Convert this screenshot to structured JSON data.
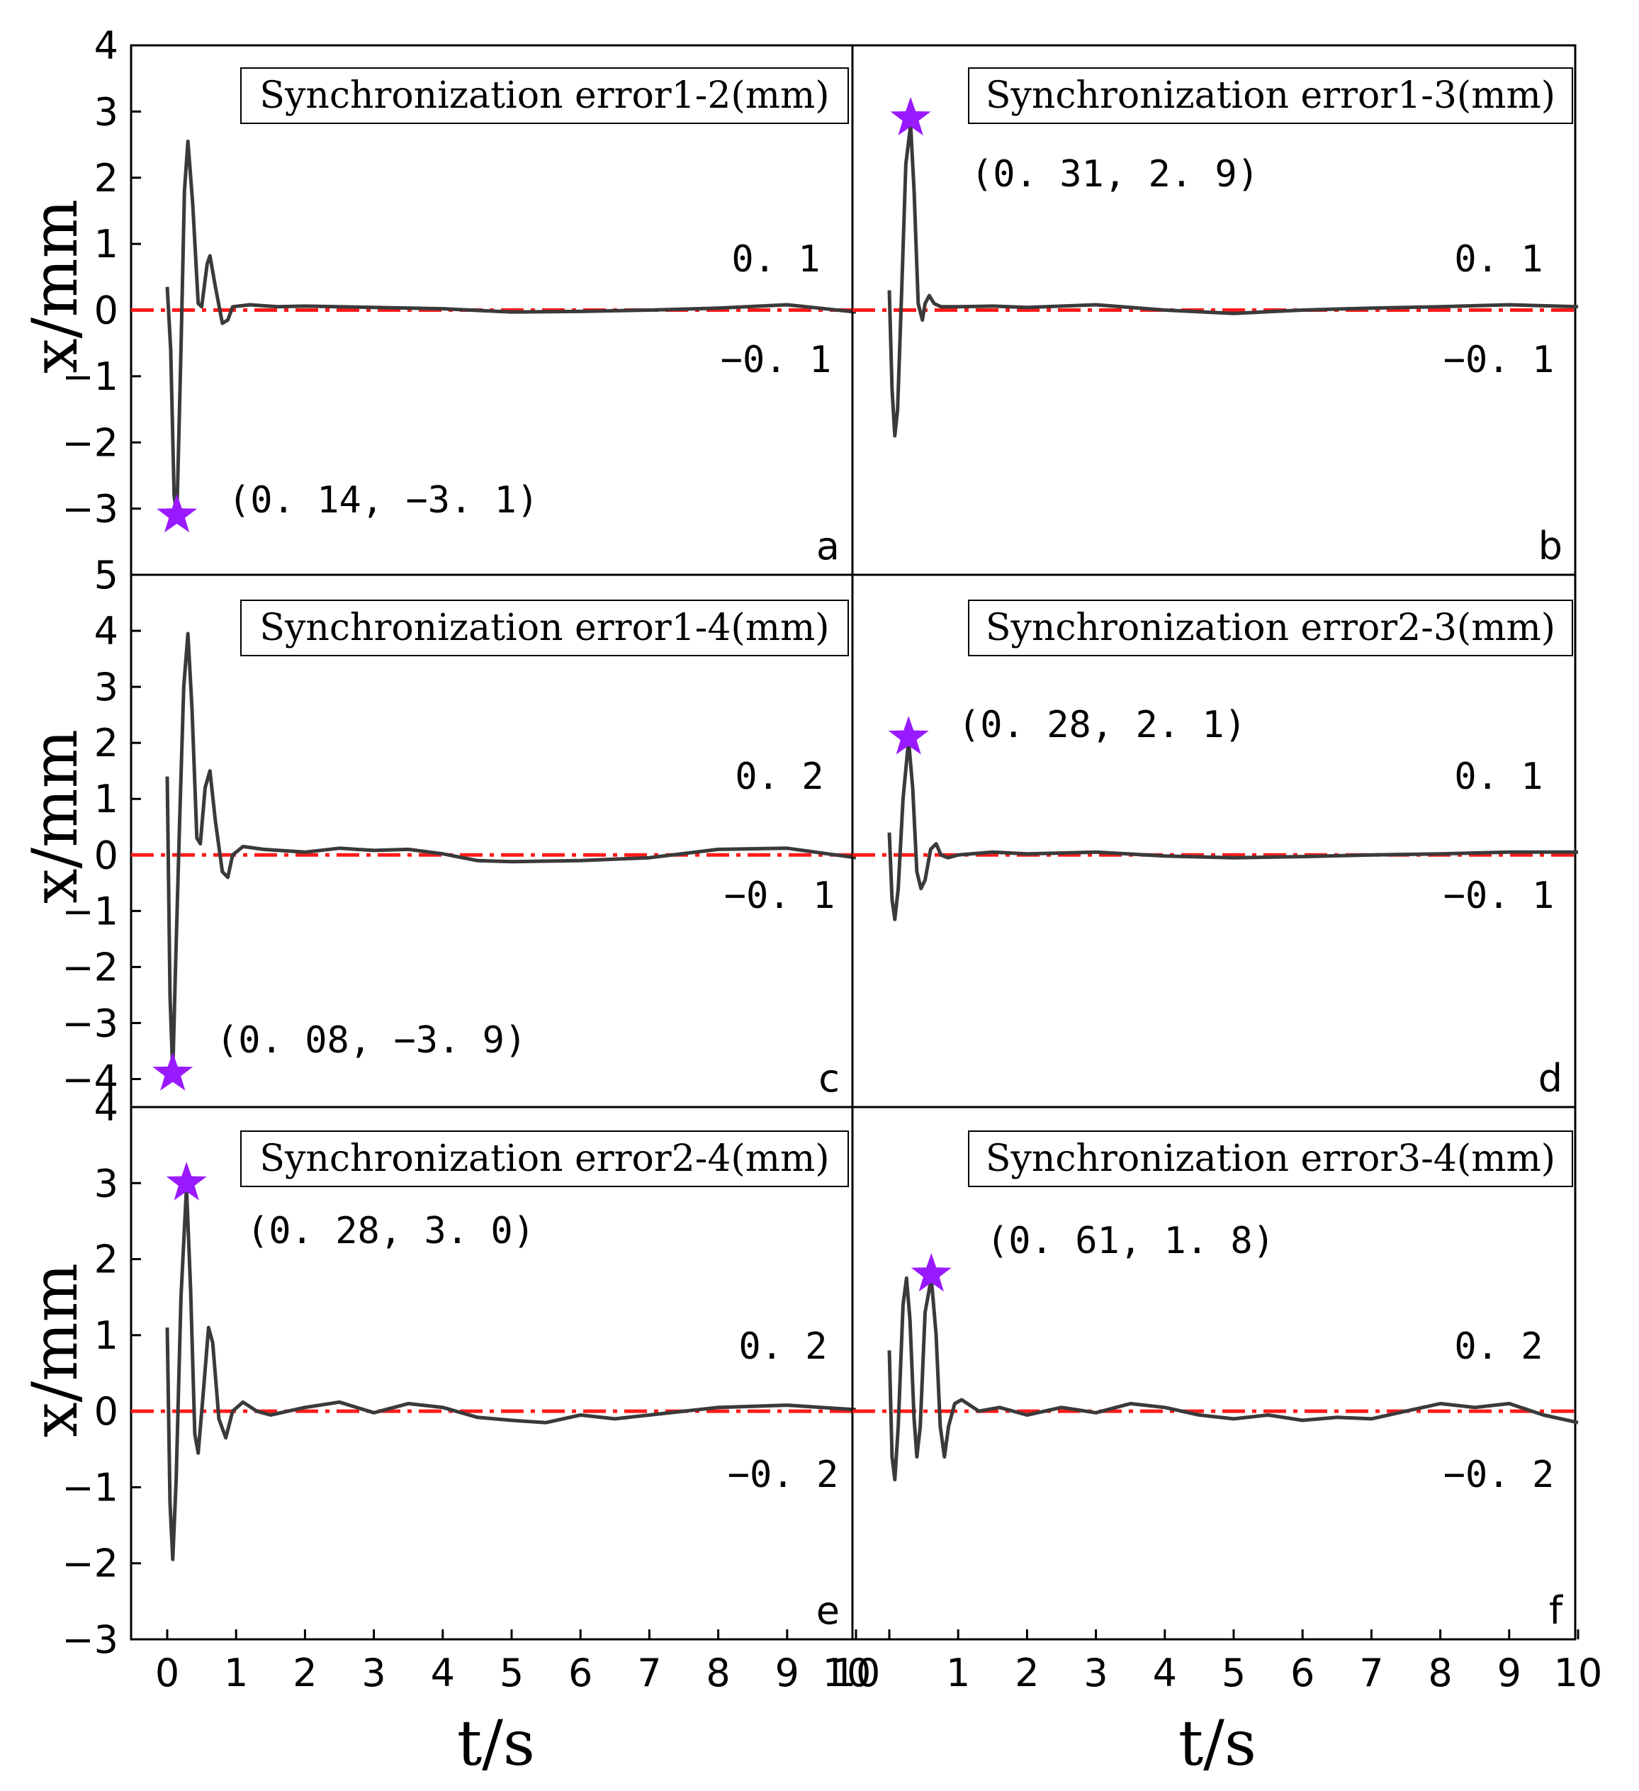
{
  "chart_data": {
    "type": "line",
    "xlabel": "t/s",
    "ylabel": "x/mm",
    "x_ticks": [
      "0",
      "1",
      "2",
      "3",
      "4",
      "5",
      "6",
      "7",
      "8",
      "9",
      "10"
    ],
    "x_ticks_right": [
      "10",
      "1",
      "2",
      "3",
      "4",
      "5",
      "6",
      "7",
      "8",
      "9",
      "10"
    ],
    "xlim": [
      -0.5,
      10
    ],
    "colors": {
      "line": "#3a3a3a",
      "ref": "#ff1a1a",
      "marker": "#9a1aff"
    },
    "panels": [
      {
        "letter": "a",
        "title": "Synchronization error1-2(mm)",
        "ylim": [
          -4,
          4
        ],
        "yticks": [
          "4",
          "3",
          "2",
          "1",
          "0",
          "−1",
          "−2",
          "−3"
        ],
        "ytick_values": [
          4,
          3,
          2,
          1,
          0,
          -1,
          -2,
          -3
        ],
        "upper_label": "0. 1",
        "lower_label": "−0. 1",
        "band": [
          0.1,
          -0.1
        ],
        "peak": {
          "t": 0.14,
          "v": -3.1,
          "label": "(0. 14, −3. 1)"
        },
        "series": [
          [
            0,
            0.35
          ],
          [
            0.05,
            -0.6
          ],
          [
            0.1,
            -2.8
          ],
          [
            0.14,
            -3.1
          ],
          [
            0.2,
            -0.6
          ],
          [
            0.25,
            1.8
          ],
          [
            0.3,
            2.55
          ],
          [
            0.37,
            1.6
          ],
          [
            0.45,
            0.1
          ],
          [
            0.5,
            0.05
          ],
          [
            0.58,
            0.7
          ],
          [
            0.62,
            0.82
          ],
          [
            0.7,
            0.35
          ],
          [
            0.8,
            -0.2
          ],
          [
            0.88,
            -0.15
          ],
          [
            0.95,
            0.05
          ],
          [
            1.2,
            0.08
          ],
          [
            1.6,
            0.05
          ],
          [
            2.0,
            0.06
          ],
          [
            3.0,
            0.04
          ],
          [
            4.0,
            0.02
          ],
          [
            5.0,
            -0.03
          ],
          [
            6.0,
            -0.02
          ],
          [
            7.0,
            0.0
          ],
          [
            8.0,
            0.03
          ],
          [
            9.0,
            0.08
          ],
          [
            10.0,
            -0.03
          ]
        ]
      },
      {
        "letter": "b",
        "title": "Synchronization error1-3(mm)",
        "ylim": [
          -4,
          4
        ],
        "yticks": [],
        "ytick_values": [],
        "upper_label": "0. 1",
        "lower_label": "−0. 1",
        "band": [
          0.1,
          -0.1
        ],
        "peak": {
          "t": 0.31,
          "v": 2.9,
          "label": "(0. 31, 2. 9)"
        },
        "series": [
          [
            0,
            0.3
          ],
          [
            0.04,
            -1.2
          ],
          [
            0.08,
            -1.9
          ],
          [
            0.12,
            -1.5
          ],
          [
            0.18,
            0.3
          ],
          [
            0.24,
            2.2
          ],
          [
            0.31,
            2.8
          ],
          [
            0.36,
            1.8
          ],
          [
            0.42,
            0.1
          ],
          [
            0.48,
            -0.15
          ],
          [
            0.52,
            0.1
          ],
          [
            0.58,
            0.22
          ],
          [
            0.65,
            0.1
          ],
          [
            0.75,
            0.05
          ],
          [
            1.0,
            0.05
          ],
          [
            1.5,
            0.06
          ],
          [
            2.0,
            0.04
          ],
          [
            3.0,
            0.08
          ],
          [
            4.0,
            0.0
          ],
          [
            5.0,
            -0.05
          ],
          [
            6.0,
            0.0
          ],
          [
            7.0,
            0.03
          ],
          [
            8.0,
            0.05
          ],
          [
            9.0,
            0.08
          ],
          [
            10.0,
            0.05
          ]
        ]
      },
      {
        "letter": "c",
        "title": "Synchronization error1-4(mm)",
        "ylim": [
          -4.5,
          5
        ],
        "yticks": [
          "5",
          "4",
          "3",
          "2",
          "1",
          "0",
          "−1",
          "−2",
          "−3",
          "−4"
        ],
        "ytick_values": [
          5,
          4,
          3,
          2,
          1,
          0,
          -1,
          -2,
          -3,
          -4
        ],
        "upper_label": "0. 2",
        "lower_label": "−0. 1",
        "band": [
          0.2,
          -0.1
        ],
        "peak": {
          "t": 0.08,
          "v": -3.9,
          "label": "(0. 08, −3. 9)"
        },
        "series": [
          [
            0,
            1.4
          ],
          [
            0.04,
            -2.5
          ],
          [
            0.08,
            -3.9
          ],
          [
            0.12,
            -2.0
          ],
          [
            0.18,
            0.6
          ],
          [
            0.24,
            3.0
          ],
          [
            0.3,
            3.95
          ],
          [
            0.36,
            2.6
          ],
          [
            0.43,
            0.3
          ],
          [
            0.48,
            0.2
          ],
          [
            0.55,
            1.2
          ],
          [
            0.62,
            1.5
          ],
          [
            0.7,
            0.6
          ],
          [
            0.8,
            -0.3
          ],
          [
            0.88,
            -0.4
          ],
          [
            0.95,
            0.0
          ],
          [
            1.1,
            0.15
          ],
          [
            1.4,
            0.1
          ],
          [
            2.0,
            0.05
          ],
          [
            2.5,
            0.12
          ],
          [
            3.0,
            0.08
          ],
          [
            3.5,
            0.1
          ],
          [
            4.0,
            0.02
          ],
          [
            4.5,
            -0.1
          ],
          [
            5.0,
            -0.12
          ],
          [
            6.0,
            -0.1
          ],
          [
            7.0,
            -0.05
          ],
          [
            8.0,
            0.1
          ],
          [
            9.0,
            0.12
          ],
          [
            10.0,
            -0.05
          ]
        ]
      },
      {
        "letter": "d",
        "title": "Synchronization error2-3(mm)",
        "ylim": [
          -4.5,
          5
        ],
        "yticks": [],
        "ytick_values": [],
        "upper_label": "0. 1",
        "lower_label": "−0. 1",
        "band": [
          0.1,
          -0.1
        ],
        "peak": {
          "t": 0.28,
          "v": 2.1,
          "label": "(0. 28, 2. 1)"
        },
        "series": [
          [
            0,
            0.4
          ],
          [
            0.04,
            -0.8
          ],
          [
            0.08,
            -1.15
          ],
          [
            0.13,
            -0.6
          ],
          [
            0.2,
            1.0
          ],
          [
            0.28,
            2.05
          ],
          [
            0.34,
            1.2
          ],
          [
            0.4,
            -0.3
          ],
          [
            0.46,
            -0.6
          ],
          [
            0.52,
            -0.45
          ],
          [
            0.6,
            0.1
          ],
          [
            0.68,
            0.2
          ],
          [
            0.75,
            0.0
          ],
          [
            0.85,
            -0.05
          ],
          [
            1.0,
            0.0
          ],
          [
            1.5,
            0.05
          ],
          [
            2.0,
            0.02
          ],
          [
            3.0,
            0.05
          ],
          [
            4.0,
            -0.02
          ],
          [
            5.0,
            -0.05
          ],
          [
            6.0,
            -0.03
          ],
          [
            7.0,
            0.0
          ],
          [
            8.0,
            0.02
          ],
          [
            9.0,
            0.05
          ],
          [
            10.0,
            0.05
          ]
        ]
      },
      {
        "letter": "e",
        "title": "Synchronization error2-4(mm)",
        "ylim": [
          -3,
          4
        ],
        "yticks": [
          "4",
          "3",
          "2",
          "1",
          "0",
          "−1",
          "−2",
          "−3"
        ],
        "ytick_values": [
          4,
          3,
          2,
          1,
          0,
          -1,
          -2,
          -3
        ],
        "upper_label": "0. 2",
        "lower_label": "−0. 2",
        "band": [
          0.2,
          -0.2
        ],
        "peak": {
          "t": 0.28,
          "v": 3.0,
          "label": "(0. 28, 3. 0)"
        },
        "series": [
          [
            0,
            1.1
          ],
          [
            0.04,
            -1.2
          ],
          [
            0.08,
            -1.95
          ],
          [
            0.13,
            -0.9
          ],
          [
            0.2,
            1.5
          ],
          [
            0.28,
            2.95
          ],
          [
            0.34,
            1.6
          ],
          [
            0.4,
            -0.3
          ],
          [
            0.45,
            -0.55
          ],
          [
            0.52,
            0.2
          ],
          [
            0.6,
            1.1
          ],
          [
            0.66,
            0.9
          ],
          [
            0.75,
            -0.1
          ],
          [
            0.85,
            -0.35
          ],
          [
            0.95,
            0.0
          ],
          [
            1.1,
            0.12
          ],
          [
            1.3,
            0.0
          ],
          [
            1.5,
            -0.05
          ],
          [
            2.0,
            0.05
          ],
          [
            2.5,
            0.12
          ],
          [
            3.0,
            -0.02
          ],
          [
            3.5,
            0.1
          ],
          [
            4.0,
            0.05
          ],
          [
            4.5,
            -0.08
          ],
          [
            5.0,
            -0.12
          ],
          [
            5.5,
            -0.15
          ],
          [
            6.0,
            -0.05
          ],
          [
            6.5,
            -0.1
          ],
          [
            7.0,
            -0.05
          ],
          [
            8.0,
            0.05
          ],
          [
            9.0,
            0.08
          ],
          [
            10.0,
            0.02
          ]
        ]
      },
      {
        "letter": "f",
        "title": "Synchronization error3-4(mm)",
        "ylim": [
          -3,
          4
        ],
        "yticks": [],
        "ytick_values": [],
        "upper_label": "0. 2",
        "lower_label": "−0. 2",
        "band": [
          0.2,
          -0.2
        ],
        "peak": {
          "t": 0.61,
          "v": 1.8,
          "label": "(0. 61, 1. 8)"
        },
        "series": [
          [
            0,
            0.8
          ],
          [
            0.04,
            -0.6
          ],
          [
            0.08,
            -0.9
          ],
          [
            0.13,
            -0.2
          ],
          [
            0.2,
            1.4
          ],
          [
            0.25,
            1.75
          ],
          [
            0.3,
            1.2
          ],
          [
            0.36,
            -0.1
          ],
          [
            0.4,
            -0.6
          ],
          [
            0.45,
            -0.2
          ],
          [
            0.52,
            1.3
          ],
          [
            0.61,
            1.75
          ],
          [
            0.68,
            1.0
          ],
          [
            0.74,
            -0.2
          ],
          [
            0.8,
            -0.6
          ],
          [
            0.86,
            -0.2
          ],
          [
            0.95,
            0.1
          ],
          [
            1.05,
            0.15
          ],
          [
            1.3,
            0.0
          ],
          [
            1.6,
            0.05
          ],
          [
            2.0,
            -0.05
          ],
          [
            2.5,
            0.05
          ],
          [
            3.0,
            -0.02
          ],
          [
            3.5,
            0.1
          ],
          [
            4.0,
            0.05
          ],
          [
            4.5,
            -0.05
          ],
          [
            5.0,
            -0.1
          ],
          [
            5.5,
            -0.05
          ],
          [
            6.0,
            -0.12
          ],
          [
            6.5,
            -0.08
          ],
          [
            7.0,
            -0.1
          ],
          [
            7.5,
            0.0
          ],
          [
            8.0,
            0.1
          ],
          [
            8.5,
            0.05
          ],
          [
            9.0,
            0.1
          ],
          [
            9.5,
            -0.05
          ],
          [
            10.0,
            -0.15
          ]
        ]
      }
    ]
  }
}
